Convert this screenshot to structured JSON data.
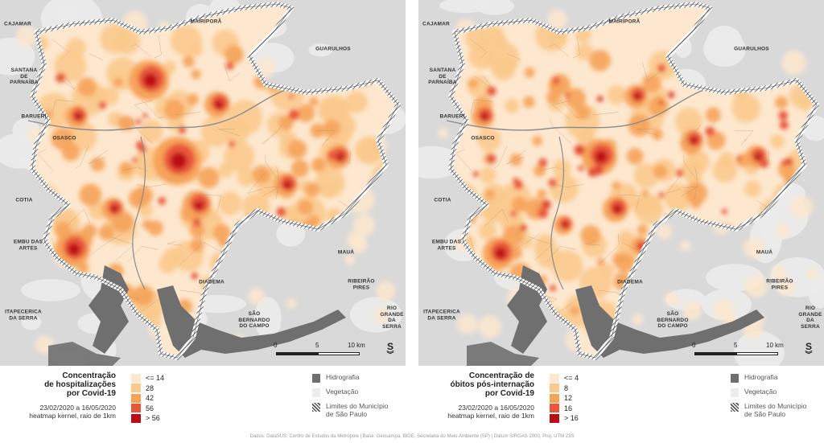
{
  "panels": [
    {
      "legend": {
        "title": "Concentração\nde hospitalizações\npor Covid-19",
        "period": "23/02/2020 a 16/05/2020",
        "method": "heatmap kernel, raio de 1km",
        "classes": [
          "<= 14",
          "28",
          "42",
          "56",
          "> 56"
        ]
      }
    },
    {
      "legend": {
        "title": "Concentração de\nóbitos pós-internação\npor Covid-19",
        "period": "23/02/2020 a 16/05/2020",
        "method": "heatmap kernel, raio de 1km",
        "classes": [
          "<= 4",
          "8",
          "12",
          "16",
          "> 16"
        ]
      }
    }
  ],
  "class_colors": [
    "#fde8cf",
    "#fbc98d",
    "#f6a35a",
    "#e9573a",
    "#bd0d14"
  ],
  "other_legend": [
    {
      "label": "Hidrografia",
      "color": "#6f6f6f"
    },
    {
      "label": "Vegetação",
      "color": "#ececec"
    },
    {
      "label": "Limites do Município\nde São Paulo",
      "color": "hatch"
    }
  ],
  "place_labels": [
    {
      "text": "CAJAMAR"
    },
    {
      "text": "MAIRIPORÃ"
    },
    {
      "text": "GUARULHOS"
    },
    {
      "text": "SANTANA\nDE\nPARNAÍBA"
    },
    {
      "text": "BARUERI"
    },
    {
      "text": "OSASCO"
    },
    {
      "text": "COTIA"
    },
    {
      "text": "EMBU DAS\nARTES"
    },
    {
      "text": "ITAPECERICA\nDA SERRA"
    },
    {
      "text": "DIADEMA"
    },
    {
      "text": "MAUÁ"
    },
    {
      "text": "RIBEIRÃO\nPIRES"
    },
    {
      "text": "SÃO\nBERNARDO\nDO CAMPO"
    },
    {
      "text": "RIO\nGRANDE DA\nSERRA"
    }
  ],
  "scale": {
    "labels": [
      "0",
      "5",
      "10 km"
    ]
  },
  "north_label": "S",
  "credits": "Dados: DataSUS; Centro de Estudos da Metrópole | Base: Geosampa, IBGE, Secretaria do Meio Ambiente (SP) | Datum SIRGAS 2000, Proj. UTM 23S"
}
